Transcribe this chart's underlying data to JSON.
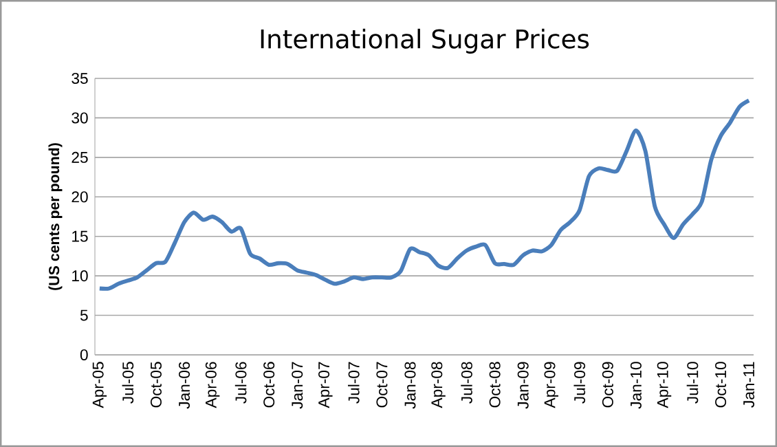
{
  "chart_data": {
    "type": "line",
    "title": "International Sugar Prices",
    "ylabel": "(US cents per pound)",
    "categories": [
      "Apr-05",
      null,
      null,
      "Jul-05",
      null,
      null,
      "Oct-05",
      null,
      null,
      "Jan-06",
      null,
      null,
      "Apr-06",
      null,
      null,
      "Jul-06",
      null,
      null,
      "Oct-06",
      null,
      null,
      "Jan-07",
      null,
      null,
      "Apr-07",
      null,
      null,
      "Jul-07",
      null,
      null,
      "Oct-07",
      null,
      null,
      "Jan-08",
      null,
      null,
      "Apr-08",
      null,
      null,
      "Jul-08",
      null,
      null,
      "Oct-08",
      null,
      null,
      "Jan-09",
      null,
      null,
      "Apr-09",
      null,
      null,
      "Jul-09",
      null,
      null,
      "Oct-09",
      null,
      null,
      "Jan-10",
      null,
      null,
      "Apr-10",
      null,
      null,
      "Jul-10",
      null,
      null,
      "Oct-10",
      null,
      null,
      "Jan-11"
    ],
    "series": [
      {
        "color": "#4a7ebb",
        "values": [
          8.4,
          8.4,
          9.0,
          9.4,
          9.8,
          10.7,
          11.6,
          11.8,
          14.2,
          16.8,
          18.0,
          17.1,
          17.5,
          16.8,
          15.6,
          16.0,
          12.8,
          12.2,
          11.4,
          11.6,
          11.5,
          10.7,
          10.4,
          10.1,
          9.5,
          9.0,
          9.3,
          9.8,
          9.6,
          9.8,
          9.8,
          9.8,
          10.6,
          13.4,
          13.0,
          12.6,
          11.3,
          11.0,
          12.2,
          13.2,
          13.7,
          13.9,
          11.6,
          11.5,
          11.4,
          12.6,
          13.2,
          13.1,
          13.9,
          15.8,
          16.8,
          18.3,
          22.6,
          23.6,
          23.4,
          23.3,
          25.8,
          28.4,
          25.8,
          18.8,
          16.5,
          14.8,
          16.5,
          17.8,
          19.4,
          24.7,
          27.7,
          29.4,
          31.4,
          32.2
        ]
      }
    ],
    "ylim": [
      0,
      35
    ],
    "yticks": [
      0,
      5,
      10,
      15,
      20,
      25,
      30,
      35
    ],
    "grid": "y",
    "legend": false,
    "marker": "none",
    "line_style": "solid"
  }
}
